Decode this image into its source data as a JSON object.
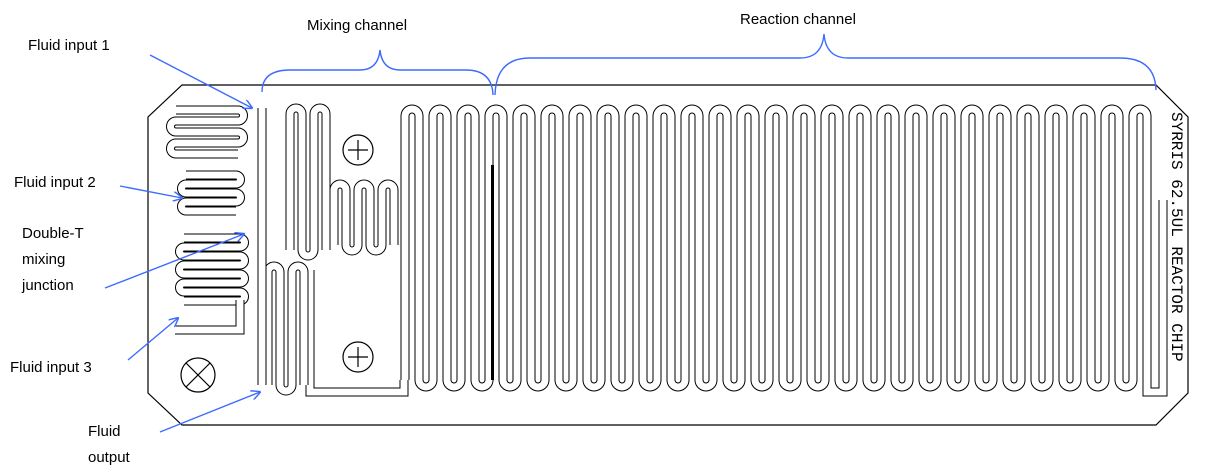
{
  "labels": {
    "fluid_input_1": "Fluid input 1",
    "fluid_input_2": "Fluid input 2",
    "double_t": [
      "Double-T",
      "mixing",
      "junction"
    ],
    "fluid_input_3": "Fluid input 3",
    "fluid_output": [
      "Fluid",
      "output"
    ],
    "mixing_channel": "Mixing channel",
    "reaction_channel": "Reaction channel"
  },
  "chip": {
    "marking": "SYRRIS 62.5UL REACTOR CHIP"
  }
}
